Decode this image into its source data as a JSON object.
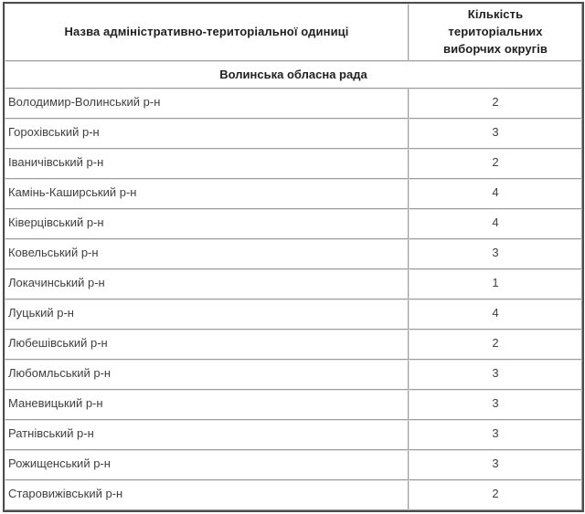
{
  "table": {
    "columns": [
      "Назва адміністративно-територіальної одиниці",
      "Кількість територіальних виборчих округів"
    ],
    "group_header": "Волинська обласна рада",
    "rows": [
      {
        "name": "Володимир-Волинський р-н",
        "count": 2
      },
      {
        "name": "Горохівський р-н",
        "count": 3
      },
      {
        "name": "Іваничівський р-н",
        "count": 2
      },
      {
        "name": "Камінь-Каширський р-н",
        "count": 4
      },
      {
        "name": "Ківерцівський р-н",
        "count": 4
      },
      {
        "name": "Ковельський р-н",
        "count": 3
      },
      {
        "name": "Локачинський р-н",
        "count": 1
      },
      {
        "name": "Луцький р-н",
        "count": 4
      },
      {
        "name": "Любешівський р-н",
        "count": 2
      },
      {
        "name": "Любомльський р-н",
        "count": 3
      },
      {
        "name": "Маневицький р-н",
        "count": 3
      },
      {
        "name": "Ратнівський р-н",
        "count": 3
      },
      {
        "name": "Рожищенський р-н",
        "count": 3
      },
      {
        "name": "Старовижівський р-н",
        "count": 2
      }
    ],
    "colors": {
      "outer_border": "#4d4d4d",
      "inner_border_dark": "#9d9d9d",
      "inner_border_light": "#e4e4e4",
      "header_text": "#1f1f1f",
      "body_text": "#404040",
      "page_bg": "#ffffff"
    }
  }
}
